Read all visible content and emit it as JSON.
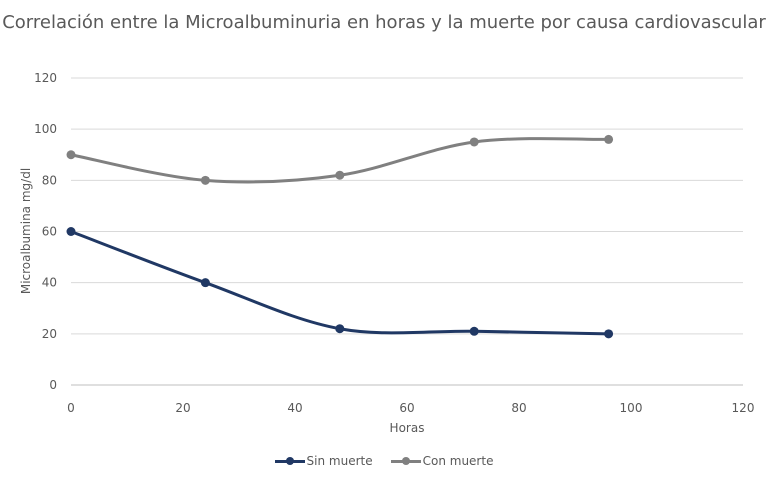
{
  "chart_data": {
    "type": "line",
    "title": "Correlación entre la Microalbuminuria en horas y la muerte por causa cardiovascular",
    "xlabel": "Horas",
    "ylabel": "Microalbumina mg/dl",
    "xlim": [
      0,
      120
    ],
    "ylim": [
      0,
      120
    ],
    "xticks": [
      0,
      20,
      40,
      60,
      80,
      100,
      120
    ],
    "yticks": [
      0,
      20,
      40,
      60,
      80,
      100,
      120
    ],
    "grid": "horizontal",
    "smooth": true,
    "legend_position": "bottom",
    "x": [
      0,
      24,
      48,
      72,
      96
    ],
    "series": [
      {
        "name": "Sin muerte",
        "values": [
          60,
          40,
          22,
          21,
          20
        ],
        "color": "#203864"
      },
      {
        "name": "Con muerte",
        "values": [
          90,
          80,
          82,
          95,
          96
        ],
        "color": "#808080"
      }
    ]
  }
}
